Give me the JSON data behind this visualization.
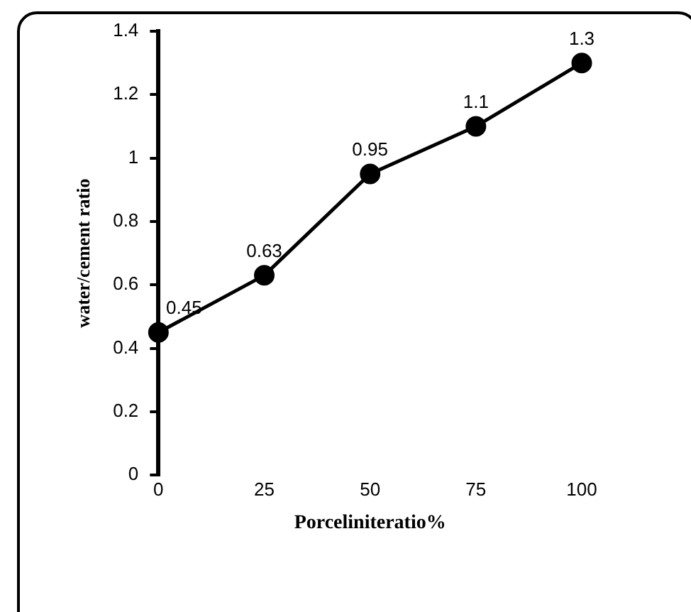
{
  "chart_data": {
    "type": "line",
    "xlabel": "Porceliniteratio%",
    "ylabel": "water/cement ratio",
    "x": [
      0,
      25,
      50,
      75,
      100
    ],
    "series": [
      {
        "color": "#000000",
        "values": [
          0.45,
          0.63,
          0.95,
          1.1,
          1.3
        ],
        "value_labels": [
          "0.45",
          "0.63",
          "0.95",
          "1.1",
          "1.3"
        ]
      }
    ],
    "xlim": [
      0,
      100
    ],
    "xticks": [
      0,
      25,
      50,
      75,
      100
    ],
    "ylim": [
      0,
      1.4
    ],
    "yticks": [
      0,
      0.2,
      0.4,
      0.6,
      0.8,
      1,
      1.2,
      1.4
    ],
    "grid": false,
    "legend": false,
    "marker": "circle",
    "line_style": "solid"
  }
}
